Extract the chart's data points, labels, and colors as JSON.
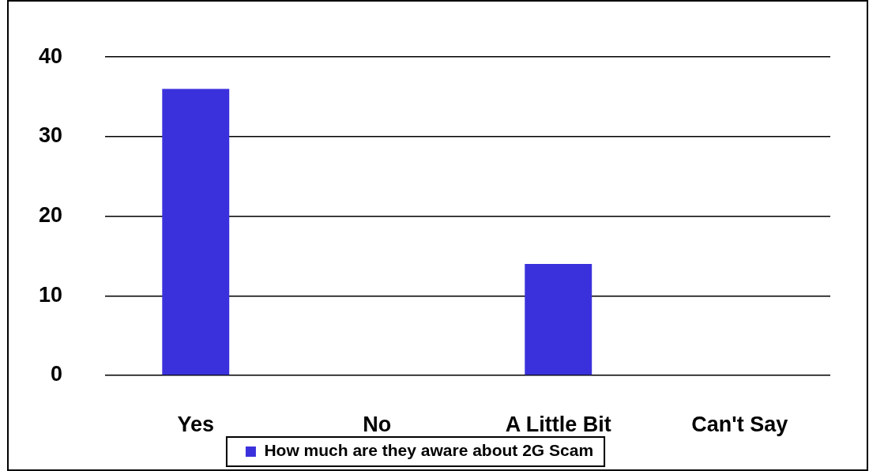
{
  "chart_data": {
    "type": "bar",
    "categories": [
      "Yes",
      "No",
      "A Little Bit",
      "Can't Say"
    ],
    "series": [
      {
        "name": "How much are they aware about 2G Scam",
        "color": "#3b31dc",
        "values": [
          36,
          0,
          14,
          0
        ]
      }
    ],
    "ylim": [
      0,
      40
    ],
    "yticks": [
      0,
      10,
      20,
      30,
      40
    ],
    "grid": "y",
    "legend": "bottom"
  }
}
